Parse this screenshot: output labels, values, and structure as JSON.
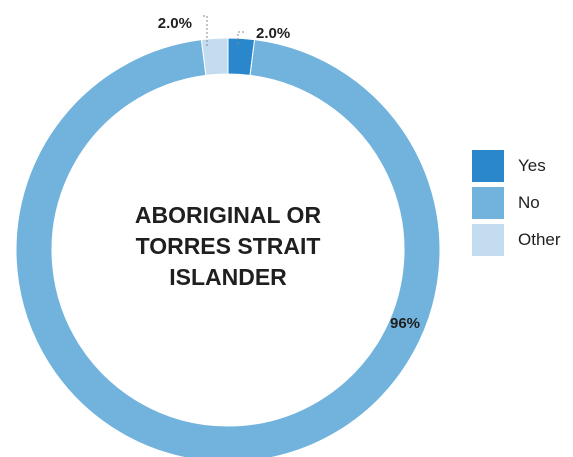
{
  "chart_data": {
    "type": "pie",
    "donut": true,
    "title": [
      "ABORIGINAL OR",
      "TORRES STRAIT",
      "ISLANDER"
    ],
    "categories": [
      "Yes",
      "No",
      "Other"
    ],
    "values": [
      2.0,
      96,
      2.0
    ],
    "value_labels": [
      "2.0%",
      "96%",
      "2.0%"
    ],
    "colors": [
      "#2b87cc",
      "#71b3dc",
      "#c3dcf0"
    ],
    "legend_position": "right"
  }
}
